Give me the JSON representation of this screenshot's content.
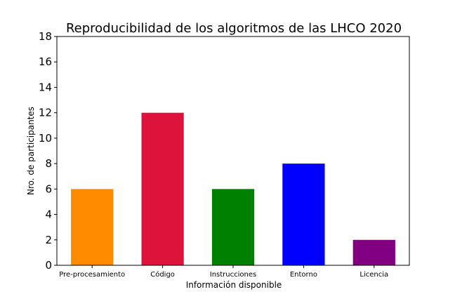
{
  "chart_data": {
    "type": "bar",
    "title": "Reproducibilidad de los algoritmos de las LHCO 2020",
    "xlabel": "Información disponible",
    "ylabel": "Nro. de participantes",
    "categories": [
      "Pre-procesamiento",
      "Código",
      "Instrucciones",
      "Entorno",
      "Licencia"
    ],
    "values": [
      6,
      12,
      6,
      8,
      2
    ],
    "colors": [
      "#ff8c00",
      "#dc143c",
      "#008000",
      "#0000ff",
      "#800080"
    ],
    "ylim": [
      0,
      18
    ],
    "yticks": [
      0,
      2,
      4,
      6,
      8,
      10,
      12,
      14,
      16,
      18
    ],
    "grid": false,
    "legend": "none"
  }
}
